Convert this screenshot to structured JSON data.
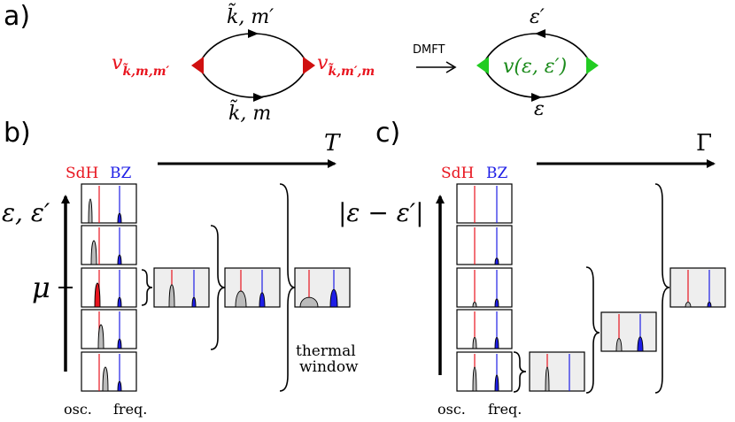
{
  "colors": {
    "sdh": "#e8141e",
    "bz": "#1e1ee6",
    "vertex_red": "#d01010",
    "vertex_green": "#22cc22",
    "green_text": "#1a8a1a",
    "panel_fill": "#eeeeee",
    "peak_fill": "#bbbbbb",
    "ink": "#000000"
  },
  "panel_a": {
    "label": "a)",
    "top_prop": "k̃, m′",
    "bottom_prop": "k̃, m",
    "vertex_left_main": "v",
    "vertex_left_sub": "k̃,m,m′",
    "vertex_right_main": "v",
    "vertex_right_sub": "k̃,m′,m",
    "arrow_label": "DMFT",
    "top_right": "ε′",
    "bottom_right": "ε",
    "center_right": "v(ε, ε′)"
  },
  "panel_b": {
    "label": "b)",
    "axis_label": "T",
    "y_label": "ε, ε′",
    "mu_label": "μ",
    "sdh": "SdH",
    "bz": "BZ",
    "osc": "osc.",
    "freq": "freq.",
    "thermal_1": "thermal",
    "thermal_2": "window"
  },
  "panel_c": {
    "label": "c)",
    "axis_label": "Γ",
    "y_label": "|ε − ε′|",
    "sdh": "SdH",
    "bz": "BZ",
    "osc": "osc.",
    "freq": "freq."
  }
}
